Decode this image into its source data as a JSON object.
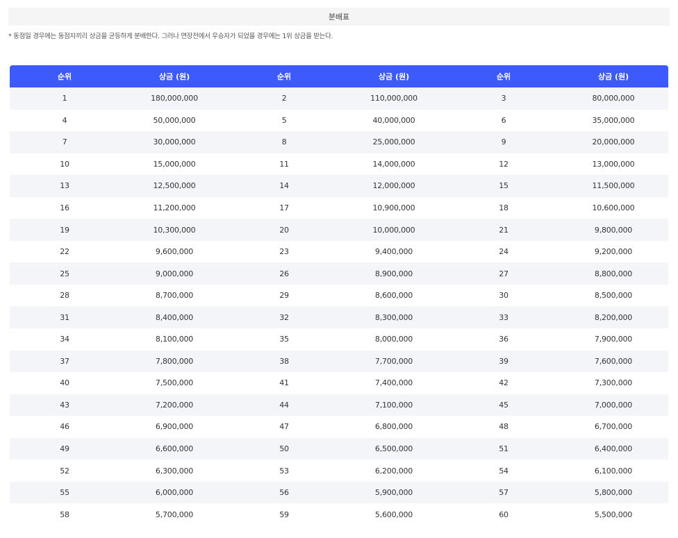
{
  "title": "분배표",
  "note": "* 동점일 경우에는 동점자끼리 상금을 균등하게 분배한다. 그러나 연장전에서 우승자가 되었을 경우에는 1위 상금을 받는다.",
  "headers": [
    "순위",
    "상금 (원)",
    "순위",
    "상금 (원)",
    "순위",
    "상금 (원)"
  ],
  "rows": [
    [
      "1",
      "180,000,000",
      "2",
      "110,000,000",
      "3",
      "80,000,000"
    ],
    [
      "4",
      "50,000,000",
      "5",
      "40,000,000",
      "6",
      "35,000,000"
    ],
    [
      "7",
      "30,000,000",
      "8",
      "25,000,000",
      "9",
      "20,000,000"
    ],
    [
      "10",
      "15,000,000",
      "11",
      "14,000,000",
      "12",
      "13,000,000"
    ],
    [
      "13",
      "12,500,000",
      "14",
      "12,000,000",
      "15",
      "11,500,000"
    ],
    [
      "16",
      "11,200,000",
      "17",
      "10,900,000",
      "18",
      "10,600,000"
    ],
    [
      "19",
      "10,300,000",
      "20",
      "10,000,000",
      "21",
      "9,800,000"
    ],
    [
      "22",
      "9,600,000",
      "23",
      "9,400,000",
      "24",
      "9,200,000"
    ],
    [
      "25",
      "9,000,000",
      "26",
      "8,900,000",
      "27",
      "8,800,000"
    ],
    [
      "28",
      "8,700,000",
      "29",
      "8,600,000",
      "30",
      "8,500,000"
    ],
    [
      "31",
      "8,400,000",
      "32",
      "8,300,000",
      "33",
      "8,200,000"
    ],
    [
      "34",
      "8,100,000",
      "35",
      "8,000,000",
      "36",
      "7,900,000"
    ],
    [
      "37",
      "7,800,000",
      "38",
      "7,700,000",
      "39",
      "7,600,000"
    ],
    [
      "40",
      "7,500,000",
      "41",
      "7,400,000",
      "42",
      "7,300,000"
    ],
    [
      "43",
      "7,200,000",
      "44",
      "7,100,000",
      "45",
      "7,000,000"
    ],
    [
      "46",
      "6,900,000",
      "47",
      "6,800,000",
      "48",
      "6,700,000"
    ],
    [
      "49",
      "6,600,000",
      "50",
      "6,500,000",
      "51",
      "6,400,000"
    ],
    [
      "52",
      "6,300,000",
      "53",
      "6,200,000",
      "54",
      "6,100,000"
    ],
    [
      "55",
      "6,000,000",
      "56",
      "5,900,000",
      "57",
      "5,800,000"
    ],
    [
      "58",
      "5,700,000",
      "59",
      "5,600,000",
      "60",
      "5,500,000"
    ]
  ],
  "colors": {
    "header_bg": "#3d5afe",
    "stripe_bg": "#f4f5f8",
    "title_bg": "#f5f5f5"
  }
}
